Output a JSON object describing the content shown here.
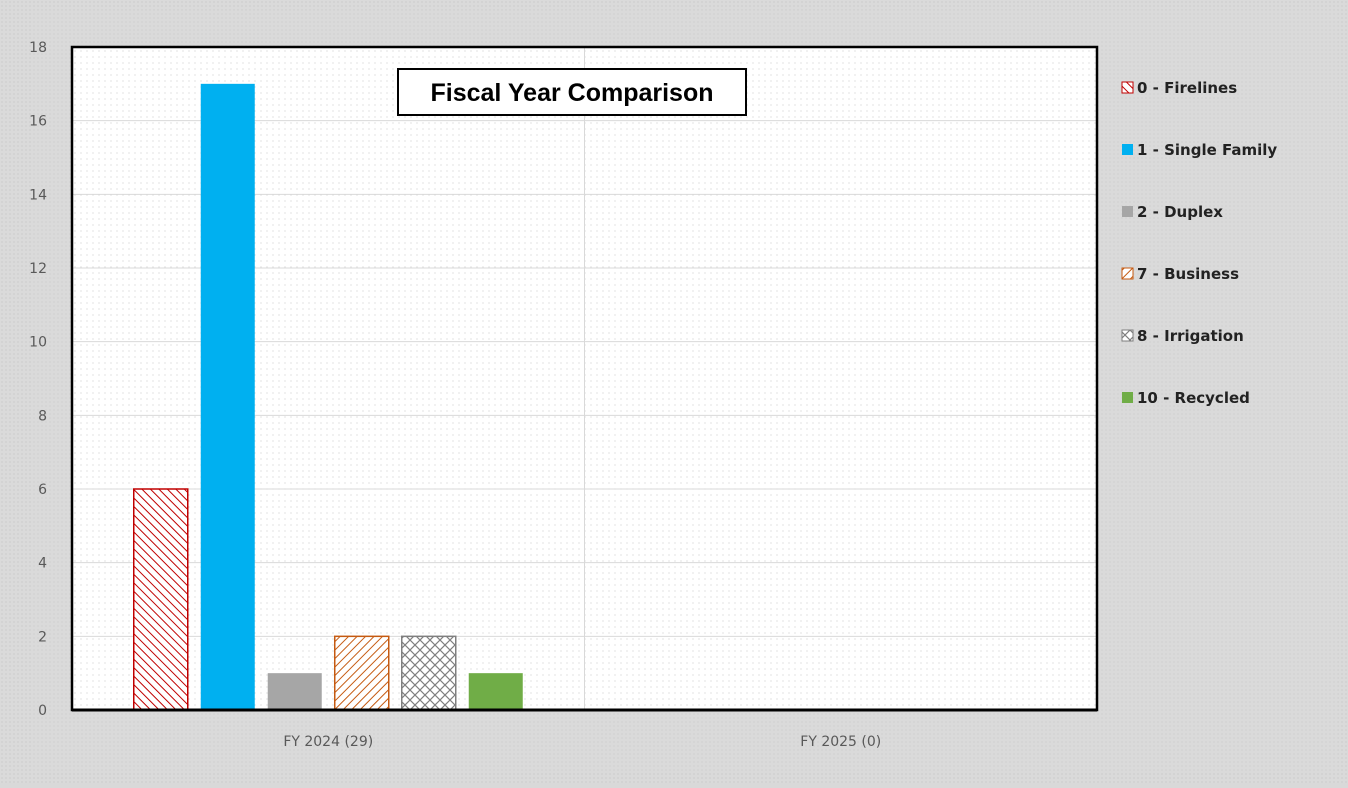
{
  "chart_data": {
    "type": "bar",
    "title": "Fiscal Year Comparison",
    "categories": [
      "FY 2024 (29)",
      "FY 2025 (0)"
    ],
    "ylim": [
      0,
      18
    ],
    "yticks": [
      0,
      2,
      4,
      6,
      8,
      10,
      12,
      14,
      16,
      18
    ],
    "grid": true,
    "legend_position": "right",
    "series": [
      {
        "name": "0 - Firelines",
        "values": [
          6,
          0
        ],
        "color": "#c00000",
        "pattern": "diag-right"
      },
      {
        "name": "1 - Single Family",
        "values": [
          17,
          0
        ],
        "color": "#00b0f0",
        "pattern": "solid"
      },
      {
        "name": "2 - Duplex",
        "values": [
          1,
          0
        ],
        "color": "#a6a6a6",
        "pattern": "solid"
      },
      {
        "name": "7 - Business",
        "values": [
          2,
          0
        ],
        "color": "#c55a11",
        "pattern": "diag-left"
      },
      {
        "name": "8 - Irrigation",
        "values": [
          2,
          0
        ],
        "color": "#7f7f7f",
        "pattern": "crosshatch"
      },
      {
        "name": "10 - Recycled",
        "values": [
          1,
          0
        ],
        "color": "#70ad47",
        "pattern": "solid"
      }
    ]
  }
}
